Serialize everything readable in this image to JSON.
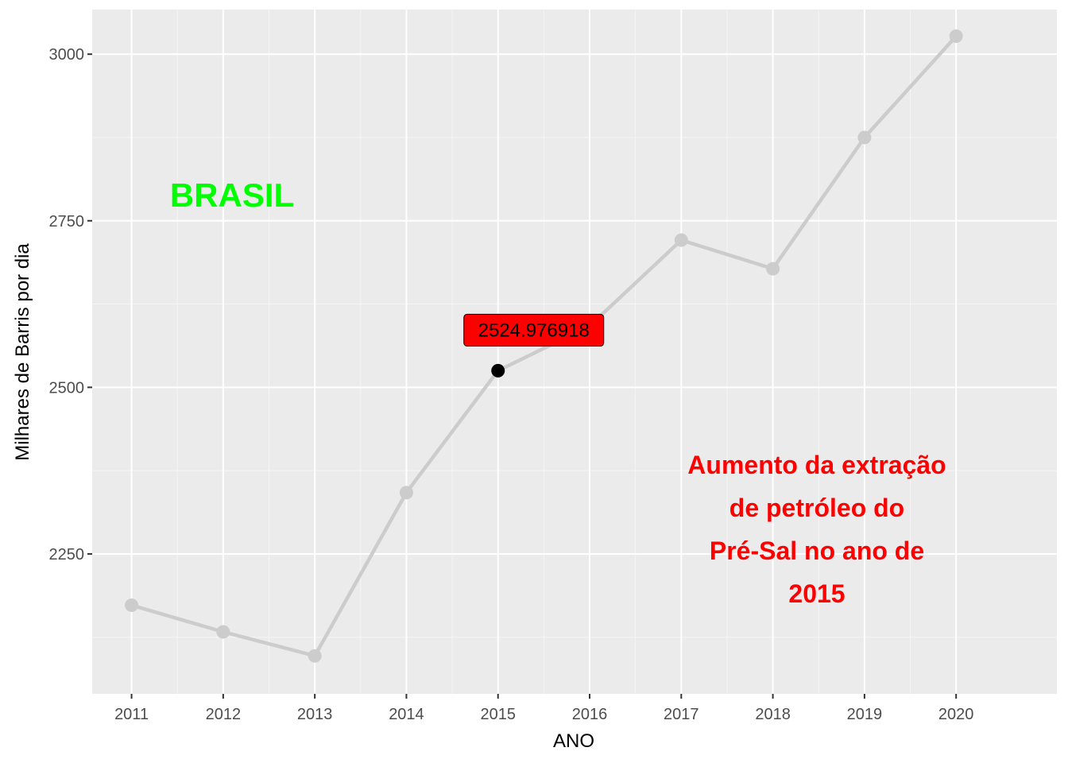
{
  "colors": {
    "panel": "#ebebeb",
    "grid_major": "#ffffff",
    "grid_minor": "#f5f5f5",
    "line": "#cccccc",
    "highlight_point": "#000000",
    "label_fill": "#ff0000",
    "annotation_green": "#00ff00",
    "annotation_red": "#ff0000"
  },
  "chart_data": {
    "type": "line",
    "title": "",
    "xlabel": "ANO",
    "ylabel": "Milhares de Barris por dia",
    "x": [
      2011,
      2012,
      2013,
      2014,
      2015,
      2016,
      2017,
      2018,
      2019,
      2020
    ],
    "values": [
      2173,
      2133,
      2097,
      2342,
      2524.976918,
      2592,
      2721,
      2678,
      2875,
      3027
    ],
    "xlim": [
      2010.57,
      2021.1
    ],
    "ylim": [
      2040,
      3067
    ],
    "y_ticks": [
      2250,
      2500,
      2750,
      3000
    ],
    "x_ticks": [
      2011,
      2012,
      2013,
      2014,
      2015,
      2016,
      2017,
      2018,
      2019,
      2020
    ],
    "grid": true,
    "highlight": {
      "x": 2015,
      "y": 2524.976918,
      "label": "2524.976918"
    },
    "annotations": [
      {
        "text": "BRASIL",
        "color": "green"
      },
      {
        "lines": [
          "Aumento da extração",
          "de petróleo do",
          "Pré-Sal no ano de",
          "2015"
        ],
        "color": "red"
      }
    ]
  }
}
